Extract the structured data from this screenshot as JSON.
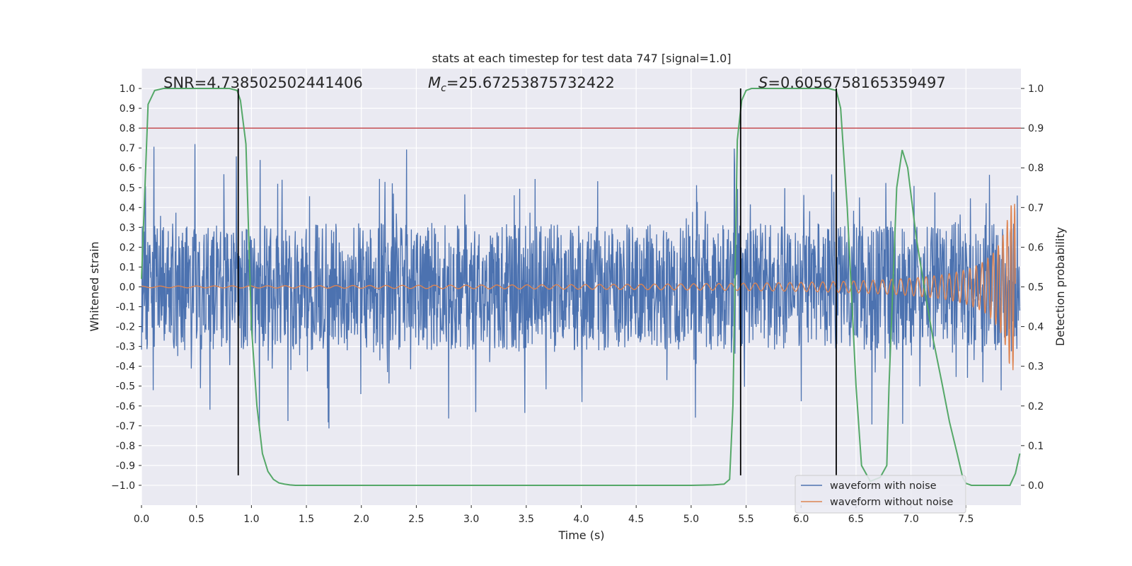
{
  "chart_data": {
    "type": "line",
    "title": "stats at each timestep for test data 747 [signal=1.0]",
    "xlabel": "Time (s)",
    "ylabel": "Whitened strain",
    "ylabel_right": "Detection probability",
    "xlim": [
      0.0,
      8.0
    ],
    "ylim": [
      -1.1,
      1.1
    ],
    "ylim_right": [
      -0.05,
      1.05
    ],
    "x_ticks": [
      0.0,
      0.5,
      1.0,
      1.5,
      2.0,
      2.5,
      3.0,
      3.5,
      4.0,
      4.5,
      5.0,
      5.5,
      6.0,
      6.5,
      7.0,
      7.5
    ],
    "x_tick_labels": [
      "0.0",
      "0.5",
      "1.0",
      "1.5",
      "2.0",
      "2.5",
      "3.0",
      "3.5",
      "4.0",
      "4.5",
      "5.0",
      "5.5",
      "6.0",
      "6.5",
      "7.0",
      "7.5"
    ],
    "y_ticks": [
      1.0,
      0.9,
      0.8,
      0.7,
      0.6,
      0.5,
      0.4,
      0.3,
      0.2,
      0.1,
      0.0,
      -0.1,
      -0.2,
      -0.3,
      -0.4,
      -0.5,
      -0.6,
      -0.7,
      -0.8,
      -0.9,
      -1.0
    ],
    "y_tick_labels": [
      "1.0",
      "0.9",
      "0.8",
      "0.7",
      "0.6",
      "0.5",
      "0.4",
      "0.3",
      "0.2",
      "0.1",
      "0.0",
      "-0.1",
      "-0.2",
      "-0.3",
      "-0.4",
      "-0.5",
      "-0.6",
      "-0.7",
      "-0.8",
      "-0.9",
      "−1.0"
    ],
    "y_right_ticks": [
      1.0,
      0.9,
      0.8,
      0.7,
      0.6,
      0.5,
      0.4,
      0.3,
      0.2,
      0.1,
      0.0
    ],
    "y_right_tick_labels": [
      "1.0",
      "0.9",
      "0.8",
      "0.7",
      "0.6",
      "0.5",
      "0.4",
      "0.3",
      "0.2",
      "0.1",
      "0.0"
    ],
    "grid": true,
    "legend_position": "lower-right",
    "series": [
      {
        "name": "waveform with noise",
        "color": "#4c72b0",
        "kind": "noise",
        "x_range": [
          0.0,
          7.99
        ],
        "typical_amplitude": 0.32,
        "peak_amplitude": 1.0
      },
      {
        "name": "waveform without noise",
        "color": "#dd8452",
        "kind": "chirp",
        "x_range": [
          0.0,
          7.95
        ],
        "start_amplitude": 0.004,
        "end_amplitude": 0.42
      },
      {
        "name": "Detection probability",
        "color": "#55a868",
        "axis": "right",
        "x": [
          0.0,
          0.06,
          0.12,
          0.2,
          0.5,
          0.8,
          0.87,
          0.9,
          0.95,
          1.0,
          1.05,
          1.1,
          1.15,
          1.2,
          1.25,
          1.3,
          1.35,
          1.4,
          5.0,
          5.2,
          5.3,
          5.35,
          5.38,
          5.42,
          5.46,
          5.5,
          5.55,
          6.0,
          6.25,
          6.32,
          6.36,
          6.42,
          6.5,
          6.55,
          6.63,
          6.72,
          6.78,
          6.8,
          6.87,
          6.92,
          6.97,
          7.05,
          7.12,
          7.2,
          7.28,
          7.35,
          7.42,
          7.47,
          7.5,
          7.55,
          7.6,
          7.9,
          7.95,
          7.99
        ],
        "y": [
          0.52,
          0.96,
          0.995,
          1.0,
          1.0,
          1.0,
          0.995,
          0.97,
          0.86,
          0.4,
          0.2,
          0.08,
          0.035,
          0.015,
          0.006,
          0.003,
          0.001,
          0.0,
          0.0,
          0.001,
          0.003,
          0.015,
          0.2,
          0.87,
          0.97,
          0.995,
          1.0,
          1.0,
          1.0,
          0.995,
          0.95,
          0.7,
          0.25,
          0.05,
          0.01,
          0.02,
          0.05,
          0.25,
          0.75,
          0.845,
          0.8,
          0.62,
          0.5,
          0.37,
          0.26,
          0.16,
          0.08,
          0.02,
          0.005,
          0.0,
          0.0,
          0.0,
          0.03,
          0.08
        ]
      }
    ],
    "threshold_line": {
      "axis": "right",
      "y": 0.9,
      "color": "#c44e52"
    },
    "vertical_markers": [
      {
        "x": 0.88,
        "y_range": [
          -0.95,
          1.0
        ]
      },
      {
        "x": 5.45,
        "y_range": [
          -0.95,
          1.0
        ]
      },
      {
        "x": 6.32,
        "y_range": [
          -0.95,
          1.0
        ]
      }
    ],
    "annotations": {
      "snr_text": "SNR=4.738502502441406",
      "mc_prefix": "M",
      "mc_sub": "c",
      "mc_value": "=25.67253875732422",
      "s_prefix": "S",
      "s_value": "=0.6056758165359497"
    }
  }
}
